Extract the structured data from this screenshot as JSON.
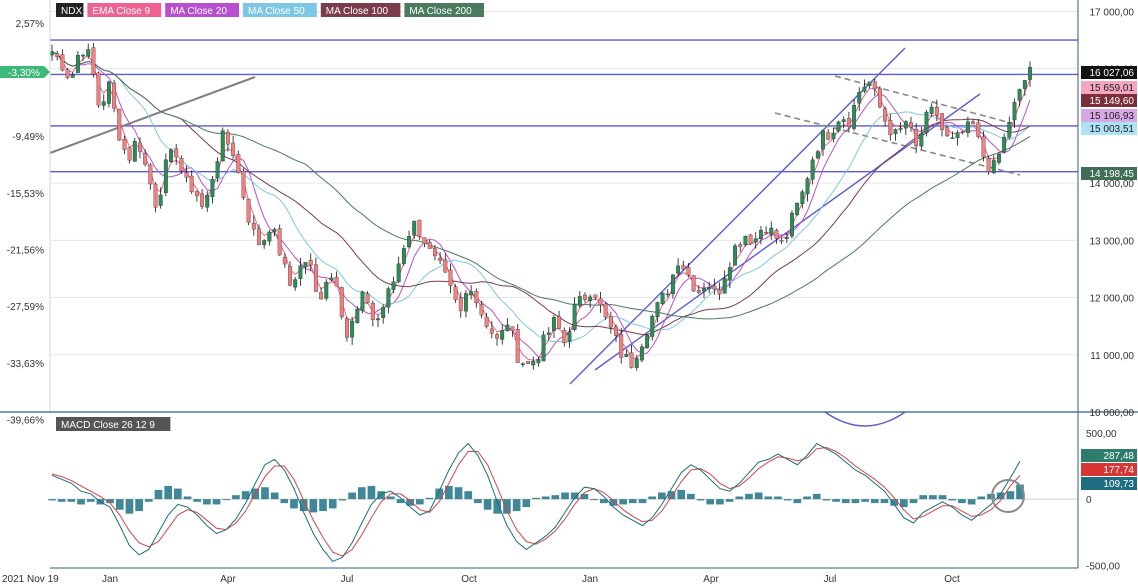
{
  "colors": {
    "background": "#ffffff",
    "axis": "#2f5e8a",
    "grid": "#e6e6e6",
    "candle_up": "#2e8b57",
    "candle_down": "#f08080",
    "wick": "#111111",
    "level": "#5b5bd6",
    "channel": "#5b5bd6",
    "dashed": "#888888",
    "old_trend": "#808080",
    "hist_pos": "#2b7a8c",
    "hist_neg": "#2b7a8c",
    "macd_line": "#1a6e80",
    "signal_line": "#d34545",
    "circle": "#8a8a8a"
  },
  "legend": [
    {
      "label": "NDX",
      "color": "#222222"
    },
    {
      "label": "EMA Close 9",
      "color": "#f06292"
    },
    {
      "label": "MA Close 20",
      "color": "#b84fd1"
    },
    {
      "label": "MA Close 50",
      "color": "#7cc7e6"
    },
    {
      "label": "MA Close 100",
      "color": "#7a3b4b"
    },
    {
      "label": "MA Close 200",
      "color": "#4c7a5f"
    }
  ],
  "macd_legend": {
    "label": "MACD Close 26 12 9",
    "color": "#555555"
  },
  "price_tags": [
    {
      "label": "16 027,06",
      "value": 16027.06,
      "bg": "#111111",
      "fg": "#ffffff"
    },
    {
      "label": "15 659,01",
      "value": 15659.01,
      "bg": "#f4a6c0",
      "fg": "#222222"
    },
    {
      "label": "15 149,60",
      "value": 15149.6,
      "bg": "#7a2f3b",
      "fg": "#ffffff"
    },
    {
      "label": "15 106,93",
      "value": 15106.93,
      "bg": "#d8a8e6",
      "fg": "#222222"
    },
    {
      "label": "15 003,51",
      "value": 15003.51,
      "bg": "#aee3f5",
      "fg": "#222222"
    },
    {
      "label": "14 198,45",
      "value": 14198.45,
      "bg": "#3f6e54",
      "fg": "#ffffff"
    }
  ],
  "macd_tags": [
    {
      "label": "287,48",
      "value": 287.48,
      "bg": "#2e7d6a",
      "fg": "#ffffff"
    },
    {
      "label": "177,74",
      "value": 177.74,
      "bg": "#d83535",
      "fg": "#ffffff"
    },
    {
      "label": "109,73",
      "value": 109.73,
      "bg": "#1e6e80",
      "fg": "#ffffff"
    }
  ],
  "current_pct_tag": {
    "label": "-3,30%",
    "bg": "#3cb878",
    "fg": "#ffffff"
  },
  "chart_data": [
    {
      "type": "candlestick",
      "title": "NDX",
      "y_ticks": [
        {
          "label": "17 000,00",
          "value": 17000
        },
        {
          "label": "16 000,00",
          "value": 16000
        },
        {
          "label": "15 000,00",
          "value": 15000
        },
        {
          "label": "14 000,00",
          "value": 14000
        },
        {
          "label": "13 000,00",
          "value": 13000
        },
        {
          "label": "12 000,00",
          "value": 12000
        },
        {
          "label": "11 000,00",
          "value": 11000
        },
        {
          "label": "10 000,00",
          "value": 10000
        }
      ],
      "pct_ticks": [
        {
          "label": "2,57%",
          "value": 16800
        },
        {
          "label": "-9,49%",
          "value": 14820
        },
        {
          "label": "-15,53%",
          "value": 13830
        },
        {
          "label": "-21,56%",
          "value": 12840
        },
        {
          "label": "-27,59%",
          "value": 11850
        },
        {
          "label": "-33,63%",
          "value": 10860
        },
        {
          "label": "-39,66%",
          "value": 9870
        }
      ],
      "x_ticks": [
        "2021 Nov 19",
        "Jan",
        "Apr",
        "Jul",
        "Oct",
        "Jan",
        "Apr",
        "Jul",
        "Oct"
      ],
      "ylim": [
        10000,
        17200
      ],
      "horizontal_levels": [
        16500,
        15900,
        15000,
        14200
      ],
      "close_path": [
        16300,
        16100,
        15800,
        16400,
        16200,
        15300,
        15700,
        14900,
        14400,
        14800,
        14200,
        13600,
        14300,
        14600,
        14000,
        13900,
        13500,
        14200,
        14800,
        14600,
        13900,
        13200,
        12900,
        13300,
        12800,
        12200,
        12500,
        12700,
        11900,
        12400,
        12300,
        11300,
        11700,
        12100,
        11500,
        11900,
        12300,
        12900,
        13300,
        13100,
        12700,
        12500,
        12100,
        11700,
        12300,
        11800,
        11500,
        11200,
        11600,
        11000,
        10800,
        10950,
        11300,
        11600,
        11200,
        11800,
        12000,
        12200,
        11700,
        11400,
        11000,
        10850,
        11200,
        11600,
        11900,
        12200,
        12700,
        12400,
        12100,
        12300,
        12000,
        12500,
        12900,
        13100,
        13000,
        13300,
        13100,
        12900,
        13400,
        13800,
        14400,
        14800,
        14900,
        15200,
        15100,
        15600,
        15800,
        15400,
        15000,
        14800,
        15100,
        14600,
        15100,
        15300,
        14800,
        14700,
        14900,
        15000,
        14500,
        14200,
        14600,
        15200,
        15600,
        16027
      ]
    },
    {
      "type": "line",
      "title": "MACD Close 26 12 9",
      "y_ticks": [
        {
          "label": "500,00",
          "value": 500
        },
        {
          "label": "0",
          "value": 0
        },
        {
          "label": "-500,00",
          "value": -500
        }
      ],
      "ylim": [
        -520,
        560
      ],
      "series": [
        {
          "name": "MACD",
          "values": [
            180,
            150,
            120,
            60,
            40,
            -20,
            -60,
            -200,
            -350,
            -420,
            -380,
            -250,
            -120,
            -40,
            -60,
            -120,
            -200,
            -260,
            -230,
            -150,
            -30,
            120,
            260,
            300,
            220,
            80,
            -100,
            -260,
            -380,
            -470,
            -440,
            -330,
            -180,
            -40,
            40,
            60,
            10,
            -60,
            -120,
            -90,
            60,
            220,
            350,
            420,
            330,
            180,
            -20,
            -200,
            -320,
            -380,
            -330,
            -280,
            -210,
            -100,
            10,
            90,
            80,
            20,
            -60,
            -120,
            -160,
            -200,
            -140,
            -40,
            80,
            200,
            260,
            220,
            150,
            80,
            60,
            120,
            200,
            280,
            300,
            340,
            300,
            260,
            330,
            420,
            380,
            340,
            280,
            220,
            180,
            120,
            60,
            -40,
            -140,
            -180,
            -100,
            -60,
            -20,
            -60,
            -120,
            -160,
            -100,
            -40,
            40,
            160,
            287
          ]
        },
        {
          "name": "Signal",
          "values": [
            190,
            170,
            140,
            100,
            60,
            20,
            -30,
            -120,
            -240,
            -330,
            -360,
            -320,
            -220,
            -120,
            -80,
            -100,
            -160,
            -220,
            -230,
            -180,
            -90,
            40,
            170,
            250,
            250,
            150,
            -10,
            -160,
            -290,
            -400,
            -430,
            -380,
            -270,
            -140,
            -20,
            40,
            40,
            -10,
            -80,
            -100,
            -20,
            120,
            260,
            360,
            360,
            260,
            90,
            -90,
            -230,
            -320,
            -340,
            -300,
            -240,
            -150,
            -40,
            50,
            80,
            50,
            -10,
            -80,
            -130,
            -170,
            -160,
            -90,
            20,
            130,
            220,
            230,
            190,
            120,
            80,
            100,
            160,
            230,
            280,
            320,
            310,
            290,
            310,
            380,
            390,
            360,
            310,
            250,
            200,
            150,
            90,
            10,
            -80,
            -150,
            -130,
            -90,
            -50,
            -50,
            -90,
            -130,
            -120,
            -80,
            -10,
            100,
            178
          ]
        },
        {
          "name": "Histogram",
          "values": [
            -10,
            -20,
            -20,
            -40,
            -20,
            -40,
            -30,
            -80,
            -110,
            -90,
            -20,
            70,
            100,
            80,
            20,
            -20,
            -40,
            -40,
            0,
            30,
            60,
            80,
            90,
            50,
            -30,
            -70,
            -90,
            -100,
            -90,
            -70,
            -10,
            50,
            90,
            100,
            60,
            20,
            -30,
            -50,
            -40,
            10,
            80,
            100,
            90,
            60,
            -30,
            -80,
            -110,
            -110,
            -90,
            -60,
            10,
            20,
            30,
            50,
            50,
            40,
            0,
            -30,
            -50,
            -40,
            -30,
            -30,
            20,
            50,
            60,
            70,
            40,
            -10,
            -40,
            -40,
            -20,
            20,
            40,
            50,
            20,
            20,
            -10,
            -30,
            20,
            40,
            -10,
            -20,
            -30,
            -30,
            -20,
            -30,
            -30,
            -50,
            -60,
            -30,
            30,
            30,
            30,
            -10,
            -30,
            -40,
            20,
            40,
            50,
            60,
            110
          ]
        }
      ]
    }
  ]
}
